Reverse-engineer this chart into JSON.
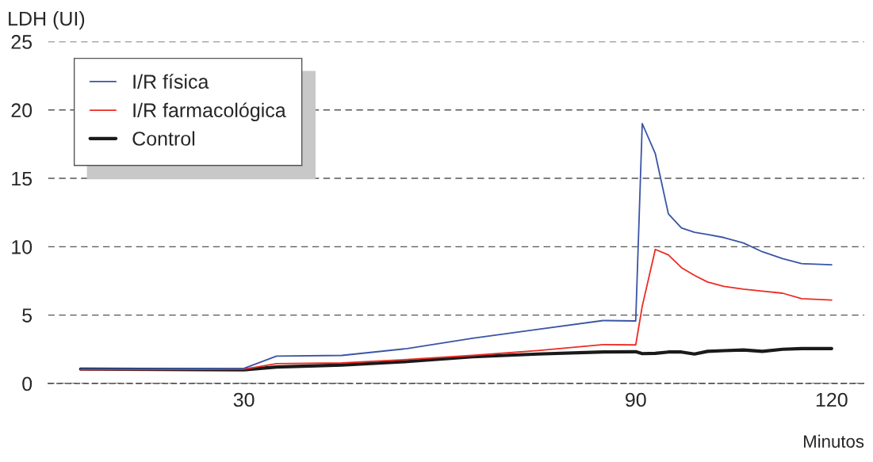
{
  "chart_data": {
    "type": "line",
    "ylabel": "LDH (UI)",
    "xlabel": "Minutos",
    "xlim": [
      0,
      125
    ],
    "xticks": [
      30,
      90,
      120
    ],
    "ylim": [
      0,
      25
    ],
    "yticks": [
      0,
      5,
      10,
      15,
      20,
      25
    ],
    "grid": "y",
    "legend": "top left",
    "line_style": "solid",
    "marker": "none",
    "series": [
      {
        "name": "I/R física",
        "color": "#3a55a4",
        "x": [
          5,
          30,
          35,
          45,
          55,
          65,
          75,
          85,
          90,
          91,
          93,
          95,
          97,
          99,
          101,
          103.5,
          106.5,
          109.4,
          112.5,
          115.4,
          120
        ],
        "values": [
          1.05,
          1.1,
          2.0,
          2.05,
          2.55,
          3.3,
          3.95,
          4.6,
          4.57,
          19.0,
          16.8,
          12.4,
          11.37,
          11.06,
          10.9,
          10.67,
          10.27,
          9.63,
          9.13,
          8.76,
          8.68
        ]
      },
      {
        "name": "I/R farmacológica",
        "color": "#ee2b24",
        "x": [
          5,
          30,
          35,
          45,
          55,
          65,
          75,
          85,
          90,
          91,
          93,
          95,
          97,
          99,
          101,
          103.5,
          106.5,
          109.4,
          112.5,
          115.4,
          120
        ],
        "values": [
          1.0,
          1.05,
          1.45,
          1.5,
          1.75,
          2.05,
          2.4,
          2.84,
          2.82,
          5.65,
          9.8,
          9.4,
          8.47,
          7.9,
          7.42,
          7.1,
          6.9,
          6.75,
          6.6,
          6.2,
          6.1
        ]
      },
      {
        "name": "Control",
        "color": "#1a1a1a",
        "x": [
          5,
          30,
          35,
          45,
          55,
          65,
          75,
          85,
          90,
          91,
          93,
          95,
          97,
          99,
          101,
          103.5,
          106.5,
          109.4,
          112.5,
          115.4,
          120
        ],
        "values": [
          1.05,
          1.0,
          1.2,
          1.35,
          1.6,
          1.95,
          2.15,
          2.3,
          2.32,
          2.18,
          2.2,
          2.3,
          2.3,
          2.15,
          2.35,
          2.4,
          2.45,
          2.35,
          2.5,
          2.55,
          2.55
        ]
      }
    ]
  }
}
